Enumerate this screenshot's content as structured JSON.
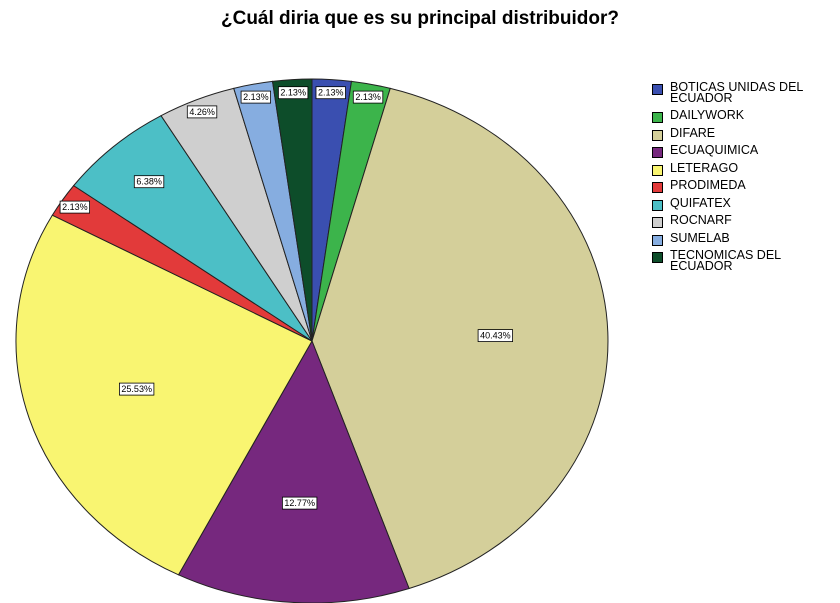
{
  "chart_data": {
    "type": "pie",
    "title": "¿Cuál diria que es su principal distribuidor?",
    "start_angle_deg": 0,
    "direction": "clockwise",
    "legend_position": "right",
    "slices": [
      {
        "name": "BOTICAS UNIDAS DEL ECUADOR",
        "value": 2.13,
        "label": "2.13%",
        "color": "#3a4fb0"
      },
      {
        "name": "DAILYWORK",
        "value": 2.13,
        "label": "2.13%",
        "color": "#3cb44b"
      },
      {
        "name": "DIFARE",
        "value": 40.43,
        "label": "40.43%",
        "color": "#d4cf9a"
      },
      {
        "name": "ECUAQUIMICA",
        "value": 12.77,
        "label": "12.77%",
        "color": "#76287e"
      },
      {
        "name": "LETERAGO",
        "value": 25.53,
        "label": "25.53%",
        "color": "#f9f571"
      },
      {
        "name": "PRODIMEDA",
        "value": 2.13,
        "label": "2.13%",
        "color": "#e23a3a"
      },
      {
        "name": "QUIFATEX",
        "value": 6.38,
        "label": "6.38%",
        "color": "#4cbfc6"
      },
      {
        "name": "ROCNARF",
        "value": 4.26,
        "label": "4.26%",
        "color": "#cfcfcf"
      },
      {
        "name": "SUMELAB",
        "value": 2.13,
        "label": "2.13%",
        "color": "#86ade0"
      },
      {
        "name": "TECNOMICAS DEL ECUADOR",
        "value": 2.13,
        "label": "2.13%",
        "color": "#0d4d2a"
      }
    ]
  }
}
